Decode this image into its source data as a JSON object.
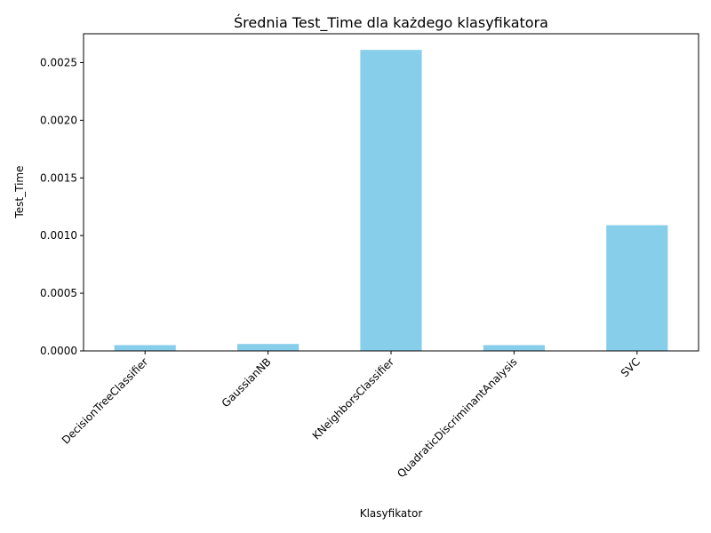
{
  "chart_data": {
    "type": "bar",
    "title": "Średnia Test_Time dla każdego klasyfikatora",
    "xlabel": "Klasyfikator",
    "ylabel": "Test_Time",
    "categories": [
      "DecisionTreeClassifier",
      "GaussianNB",
      "KNeighborsClassifier",
      "QuadraticDiscriminantAnalysis",
      "SVC"
    ],
    "values": [
      5e-05,
      6e-05,
      0.00261,
      5e-05,
      0.00109
    ],
    "ylim": [
      0,
      0.00275
    ],
    "yticks": [
      "0.0000",
      "0.0005",
      "0.0010",
      "0.0015",
      "0.0020",
      "0.0025"
    ],
    "bar_color": "#87ceeb",
    "grid": false,
    "legend": "none"
  }
}
